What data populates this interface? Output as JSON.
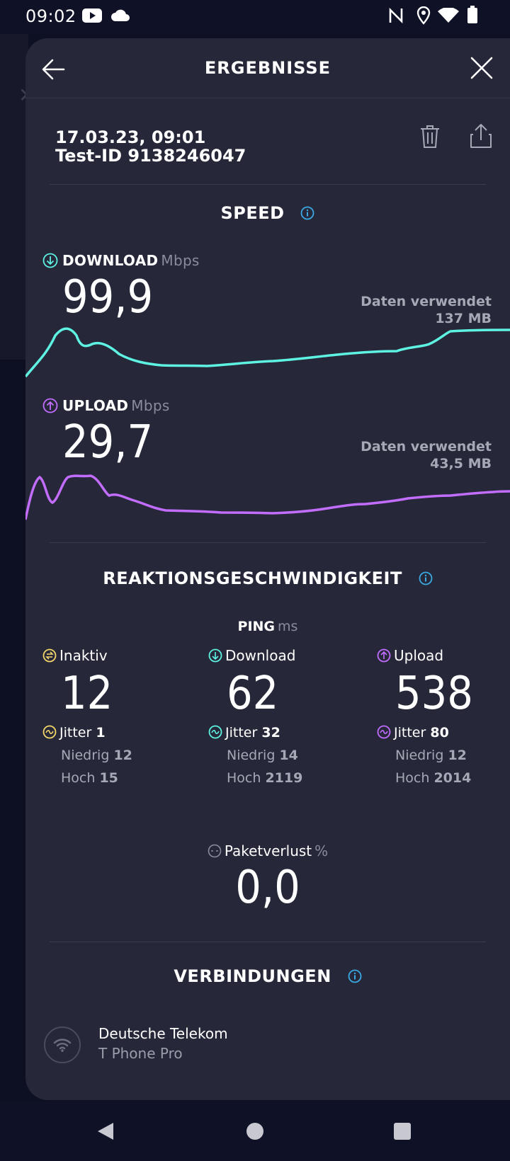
{
  "status_bar": {
    "time": "09:02",
    "left_icons": [
      "youtube-icon",
      "cloud-icon"
    ],
    "right_icons": [
      "nfc-icon",
      "location-icon",
      "wifi-icon",
      "battery-icon"
    ]
  },
  "header": {
    "title": "ERGEBNISSE",
    "back_icon": "arrow-left-icon",
    "close_icon": "close-icon"
  },
  "test": {
    "date": "17.03.23, 09:01",
    "id": "Test-ID 9138246047",
    "actions": [
      "trash-icon",
      "share-icon"
    ]
  },
  "speed": {
    "title": "SPEED",
    "download": {
      "label": "DOWNLOAD",
      "unit": "Mbps",
      "value": "99,9",
      "data_used_label": "Daten verwendet",
      "data_used_value": "137 MB",
      "color": "#5ef2e3"
    },
    "upload": {
      "label": "UPLOAD",
      "unit": "Mbps",
      "value": "29,7",
      "data_used_label": "Daten verwendet",
      "data_used_value": "43,5 MB",
      "color": "#c36dff"
    }
  },
  "latency": {
    "title": "REAKTIONSGESCHWINDIGKEIT",
    "ping_label": "PING",
    "ping_unit": "ms",
    "columns": [
      {
        "label": "Inaktiv",
        "icon": "idle-icon",
        "color": "#f5d66b",
        "value": "12",
        "jitter_label": "Jitter",
        "jitter": "1",
        "low_label": "Niedrig",
        "low": "12",
        "high_label": "Hoch",
        "high": "15"
      },
      {
        "label": "Download",
        "icon": "download-icon",
        "color": "#5ef2e3",
        "value": "62",
        "jitter_label": "Jitter",
        "jitter": "32",
        "low_label": "Niedrig",
        "low": "14",
        "high_label": "Hoch",
        "high": "2119"
      },
      {
        "label": "Upload",
        "icon": "upload-icon",
        "color": "#c36dff",
        "value": "538",
        "jitter_label": "Jitter",
        "jitter": "80",
        "low_label": "Niedrig",
        "low": "12",
        "high_label": "Hoch",
        "high": "2014"
      }
    ],
    "packet_loss_label": "Paketverlust",
    "packet_loss_unit": "%",
    "packet_loss_value": "0,0"
  },
  "connections": {
    "title": "VERBINDUNGEN",
    "provider": "Deutsche Telekom",
    "device": "T Phone Pro",
    "icon": "wifi-icon"
  },
  "colors": {
    "accent_info": "#3aa9e4",
    "sheet_bg": "#262839"
  }
}
